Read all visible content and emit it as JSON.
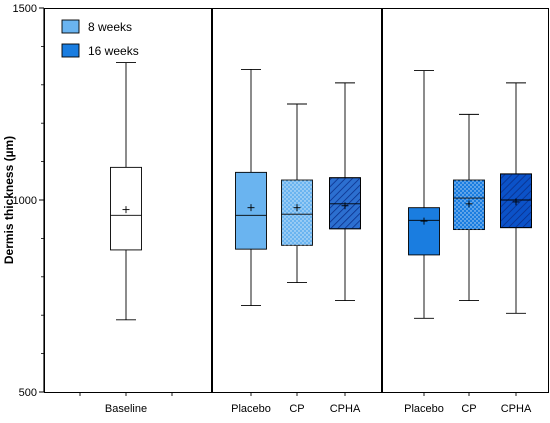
{
  "chart_data": {
    "type": "box",
    "ylabel": "Dermis thickness (µm)",
    "ylim": [
      500,
      1500
    ],
    "yticks": [
      500,
      1000,
      1500
    ],
    "legend": {
      "placement": "top-left",
      "entries": [
        {
          "label": "8 weeks",
          "color": "#6ab4f0"
        },
        {
          "label": "16 weeks",
          "color": "#1a7de0"
        }
      ]
    },
    "panels": [
      {
        "name": "panel-baseline",
        "boxes": [
          {
            "category": "Baseline",
            "min": 688,
            "q1": 870,
            "median": 960,
            "q3": 1085,
            "max": 1358,
            "mean": 975,
            "color": "#ffffff",
            "pattern": "none"
          }
        ]
      },
      {
        "name": "panel-8-weeks",
        "boxes": [
          {
            "category": "Placebo",
            "min": 725,
            "q1": 872,
            "median": 960,
            "q3": 1072,
            "max": 1340,
            "mean": 980,
            "color": "#6ab4f0",
            "pattern": "none"
          },
          {
            "category": "CP",
            "min": 785,
            "q1": 882,
            "median": 963,
            "q3": 1052,
            "max": 1250,
            "mean": 980,
            "color": "#6ab4f0",
            "pattern": "dots"
          },
          {
            "category": "CPHA",
            "min": 738,
            "q1": 925,
            "median": 990,
            "q3": 1058,
            "max": 1305,
            "mean": 985,
            "color": "#2c6fd0",
            "pattern": "hatch"
          }
        ]
      },
      {
        "name": "panel-16-weeks",
        "boxes": [
          {
            "category": "Placebo",
            "min": 692,
            "q1": 857,
            "median": 947,
            "q3": 980,
            "max": 1337,
            "mean": 945,
            "color": "#1a7de0",
            "pattern": "none"
          },
          {
            "category": "CP",
            "min": 738,
            "q1": 923,
            "median": 1005,
            "q3": 1052,
            "max": 1223,
            "mean": 990,
            "color": "#1a7de0",
            "pattern": "dots"
          },
          {
            "category": "CPHA",
            "min": 705,
            "q1": 928,
            "median": 1000,
            "q3": 1068,
            "max": 1305,
            "mean": 995,
            "color": "#0b52c8",
            "pattern": "hatch"
          }
        ]
      }
    ]
  }
}
